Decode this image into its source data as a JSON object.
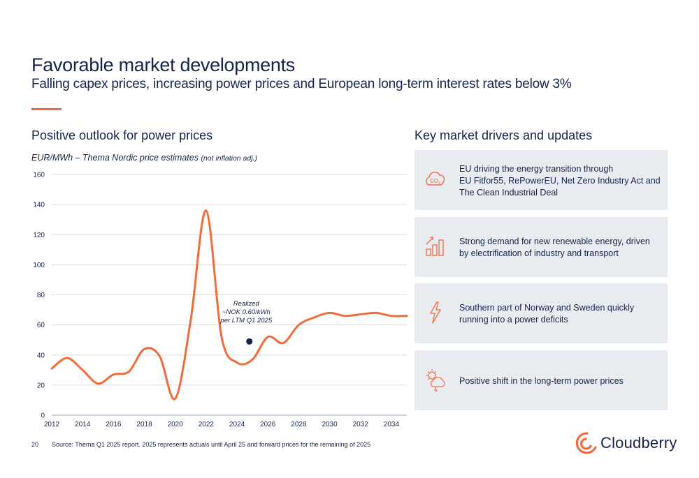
{
  "header": {
    "title": "Favorable market developments",
    "subtitle": "Falling capex prices, increasing power prices and European long-term interest rates below 3%"
  },
  "left_section": {
    "heading": "Positive outlook for power prices",
    "chart_label_main": "EUR/MWh – Thema Nordic price estimates",
    "chart_label_note": "(not inflation adj.)"
  },
  "right_section": {
    "heading": "Key market drivers and updates",
    "cards": [
      {
        "icon": "co2-cloud-icon",
        "lines": [
          "EU driving the energy transition through",
          "EU Fitfor55, RePowerEU, Net Zero Industry Act and",
          "The Clean Industrial Deal"
        ]
      },
      {
        "icon": "growth-bars-icon",
        "lines": [
          "Strong demand for new renewable energy, driven",
          "by electrification of industry and transport"
        ]
      },
      {
        "icon": "lightning-icon",
        "lines": [
          "Southern part of Norway and Sweden quickly",
          "running into a power deficits"
        ]
      },
      {
        "icon": "sun-cloud-storm-icon",
        "lines": [
          "Positive shift in the long-term power prices"
        ]
      }
    ]
  },
  "chart_data": {
    "type": "line",
    "ylim": [
      0,
      160
    ],
    "yticks": [
      0,
      20,
      40,
      60,
      80,
      100,
      120,
      140,
      160
    ],
    "xlim": [
      2012,
      2035
    ],
    "xticks": [
      2012,
      2014,
      2016,
      2018,
      2020,
      2022,
      2024,
      2026,
      2028,
      2030,
      2032,
      2034
    ],
    "grid": true,
    "series": [
      {
        "color": "#f26b3a",
        "points": [
          [
            2012,
            31
          ],
          [
            2013,
            38
          ],
          [
            2014,
            30
          ],
          [
            2015,
            21
          ],
          [
            2016,
            27
          ],
          [
            2017,
            29
          ],
          [
            2018,
            44
          ],
          [
            2019,
            39
          ],
          [
            2020,
            11
          ],
          [
            2021,
            63
          ],
          [
            2022,
            136
          ],
          [
            2023,
            52
          ],
          [
            2024,
            35
          ],
          [
            2025,
            37
          ],
          [
            2026,
            52
          ],
          [
            2027,
            48
          ],
          [
            2028,
            60
          ],
          [
            2029,
            65
          ],
          [
            2030,
            68
          ],
          [
            2031,
            66
          ],
          [
            2032,
            67
          ],
          [
            2033,
            68
          ],
          [
            2034,
            66
          ],
          [
            2035,
            66
          ]
        ]
      }
    ],
    "annotation": {
      "point": [
        2024.8,
        49
      ],
      "color": "#14244a",
      "lines": [
        "Realized",
        "~NOK 0.60/kWh",
        "per LTM Q1 2025"
      ]
    }
  },
  "footer": {
    "page_number": "20",
    "source": "Source: Thema Q1 2025 report. 2025 represents actuals until April 25 and forward prices for the remaining of 2025"
  },
  "brand": {
    "name": "Cloudberry",
    "accent": "#f26b3a",
    "navy": "#14244a"
  }
}
